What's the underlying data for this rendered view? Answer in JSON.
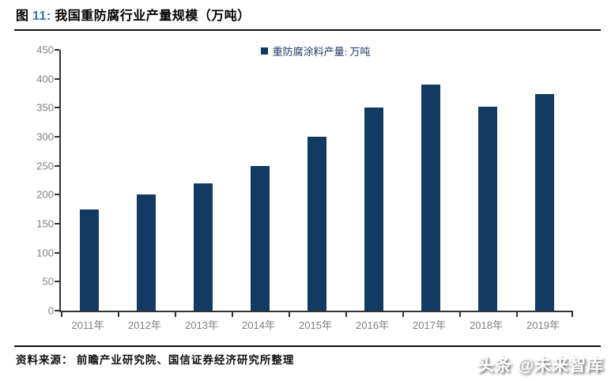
{
  "figure": {
    "label_prefix": "图",
    "number": "11:",
    "title": "我国重防腐行业产量规模（万吨）"
  },
  "legend": {
    "label": "重防腐涂料产量: 万吨"
  },
  "footer": {
    "source": "资料来源： 前瞻产业研究院、国信证券经济研究所整理"
  },
  "watermark": {
    "text": "头条 @未来智库"
  },
  "colors": {
    "bar": "#123A63",
    "title_number_blue": "#2E75B6",
    "axis": "#333333",
    "tick_label": "#808080",
    "legend_text": "#1F3864"
  },
  "chart_data": {
    "type": "bar",
    "title": "我国重防腐行业产量规模（万吨）",
    "series_name": "重防腐涂料产量: 万吨",
    "categories": [
      "2011年",
      "2012年",
      "2013年",
      "2014年",
      "2015年",
      "2016年",
      "2017年",
      "2018年",
      "2019年"
    ],
    "values": [
      175,
      200,
      220,
      250,
      300,
      350,
      390,
      352,
      373
    ],
    "xlabel": "",
    "ylabel": "",
    "ylim": [
      0,
      450
    ],
    "ytick_step": 50,
    "grid": false,
    "legend_position": "top-center",
    "bar_color": "#123A63"
  }
}
